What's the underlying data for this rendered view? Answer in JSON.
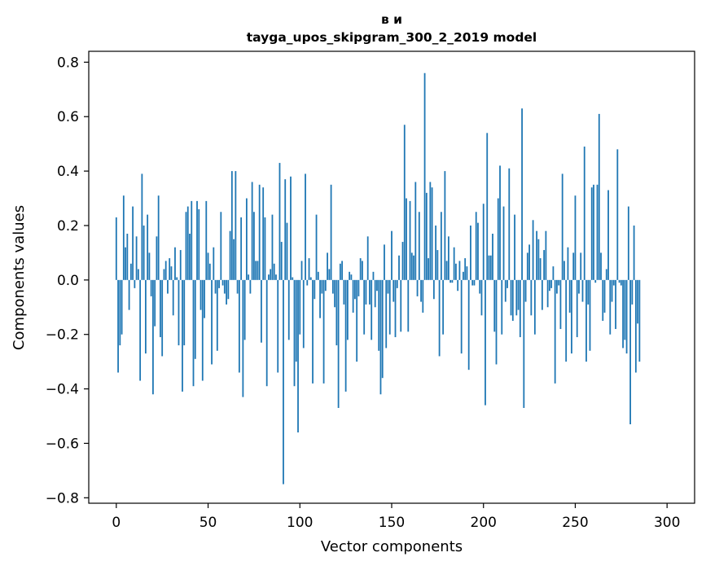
{
  "chart_data": {
    "type": "bar",
    "title_line1": "в и",
    "title_line2": "tayga_upos_skipgram_300_2_2019 model",
    "xlabel": "Vector components",
    "ylabel": "Components values",
    "xlim": [
      -15,
      315
    ],
    "ylim": [
      -0.82,
      0.84
    ],
    "x_ticks": [
      0,
      50,
      100,
      150,
      200,
      250,
      300
    ],
    "x_tick_labels": [
      "0",
      "50",
      "100",
      "150",
      "200",
      "250",
      "300"
    ],
    "y_ticks": [
      -0.8,
      -0.6,
      -0.4,
      -0.2,
      0.0,
      0.2,
      0.4,
      0.6,
      0.8
    ],
    "y_tick_labels": [
      "−0.8",
      "−0.6",
      "−0.4",
      "−0.2",
      "0.0",
      "0.2",
      "0.4",
      "0.6",
      "0.8"
    ],
    "bar_color": "#1f77b4",
    "grid": false,
    "values": [
      0.23,
      -0.34,
      -0.24,
      -0.2,
      0.31,
      0.12,
      0.17,
      -0.11,
      0.06,
      0.27,
      -0.03,
      0.16,
      0.04,
      -0.37,
      0.39,
      0.2,
      -0.27,
      0.24,
      0.1,
      -0.06,
      -0.42,
      -0.17,
      0.16,
      0.31,
      -0.21,
      -0.28,
      0.04,
      0.07,
      -0.05,
      0.08,
      0.05,
      -0.13,
      0.12,
      0.01,
      -0.24,
      0.11,
      -0.41,
      -0.24,
      0.25,
      0.27,
      0.17,
      0.29,
      -0.39,
      -0.29,
      0.29,
      0.26,
      -0.11,
      -0.37,
      -0.14,
      0.29,
      0.1,
      0.06,
      -0.31,
      0.12,
      -0.05,
      -0.26,
      -0.03,
      0.25,
      -0.02,
      -0.05,
      -0.09,
      -0.07,
      0.18,
      0.4,
      0.15,
      0.4,
      -0.05,
      -0.34,
      0.23,
      -0.43,
      -0.22,
      0.3,
      0.02,
      -0.05,
      0.36,
      0.25,
      0.07,
      0.07,
      0.35,
      -0.23,
      0.34,
      0.23,
      -0.39,
      0.02,
      0.04,
      0.24,
      0.06,
      0.02,
      -0.34,
      0.43,
      0.14,
      -0.75,
      0.37,
      0.21,
      -0.22,
      0.38,
      0.01,
      -0.39,
      -0.3,
      -0.56,
      -0.2,
      0.07,
      -0.25,
      0.39,
      -0.02,
      0.08,
      0.01,
      -0.38,
      -0.07,
      0.24,
      0.03,
      -0.14,
      -0.05,
      -0.38,
      -0.04,
      0.1,
      0.04,
      0.35,
      -0.05,
      -0.1,
      -0.24,
      -0.47,
      0.06,
      0.07,
      -0.09,
      -0.41,
      -0.22,
      0.03,
      0.02,
      -0.12,
      -0.07,
      -0.3,
      -0.06,
      0.08,
      0.07,
      -0.2,
      -0.09,
      0.16,
      -0.09,
      -0.22,
      0.03,
      -0.1,
      -0.04,
      -0.26,
      -0.42,
      -0.36,
      0.13,
      -0.25,
      -0.05,
      -0.2,
      0.18,
      -0.08,
      -0.21,
      -0.03,
      0.09,
      -0.19,
      0.14,
      0.57,
      0.3,
      -0.19,
      0.29,
      0.1,
      0.09,
      0.36,
      -0.06,
      0.25,
      -0.08,
      -0.12,
      0.76,
      0.32,
      0.08,
      0.36,
      0.34,
      -0.07,
      0.2,
      0.11,
      -0.28,
      0.25,
      -0.2,
      0.4,
      0.07,
      0.16,
      -0.01,
      -0.01,
      0.12,
      0.06,
      -0.04,
      0.07,
      -0.27,
      0.03,
      0.08,
      0.05,
      -0.33,
      0.2,
      -0.02,
      -0.02,
      0.25,
      0.21,
      -0.05,
      -0.13,
      0.28,
      -0.46,
      0.54,
      0.09,
      0.09,
      0.17,
      -0.19,
      -0.31,
      0.3,
      0.42,
      -0.2,
      0.27,
      -0.08,
      -0.03,
      0.41,
      -0.13,
      -0.15,
      0.24,
      -0.13,
      -0.11,
      -0.21,
      0.63,
      -0.47,
      -0.08,
      0.1,
      0.13,
      -0.13,
      0.22,
      -0.2,
      0.18,
      0.15,
      0.08,
      -0.11,
      0.11,
      0.18,
      -0.1,
      -0.04,
      -0.03,
      0.05,
      -0.38,
      -0.05,
      -0.02,
      -0.18,
      0.39,
      0.07,
      -0.3,
      0.12,
      -0.12,
      -0.27,
      0.1,
      0.31,
      -0.21,
      -0.05,
      0.1,
      -0.08,
      0.49,
      -0.3,
      -0.09,
      -0.26,
      0.34,
      0.35,
      -0.01,
      0.35,
      0.61,
      0.1,
      -0.15,
      -0.12,
      0.04,
      0.33,
      -0.2,
      -0.08,
      -0.02,
      -0.18,
      0.48,
      -0.01,
      -0.02,
      -0.25,
      -0.22,
      -0.27,
      0.27,
      -0.53,
      -0.09,
      0.2,
      -0.34,
      -0.16,
      -0.3
    ]
  }
}
